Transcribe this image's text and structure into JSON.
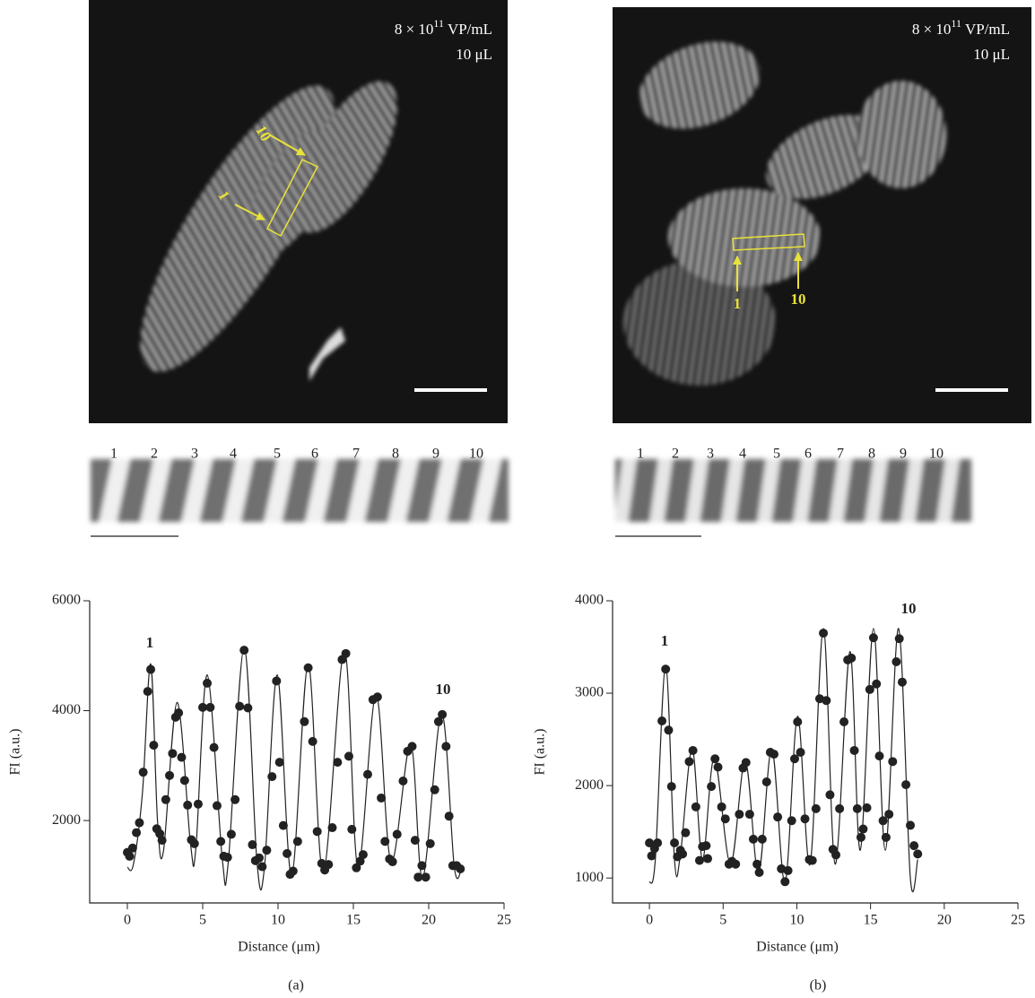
{
  "panels": [
    {
      "label": "(a)",
      "image": {
        "concentration": {
          "mantissa": "8 × 10",
          "exponent": "11",
          "unit": "VP/mL"
        },
        "volume": "10 μL",
        "markers": [
          "1",
          "10"
        ]
      },
      "strip_labels": [
        "1",
        "2",
        "3",
        "4",
        "5",
        "6",
        "7",
        "8",
        "9",
        "10"
      ]
    },
    {
      "label": "(b)",
      "image": {
        "concentration": {
          "mantissa": "8 × 10",
          "exponent": "11",
          "unit": "VP/mL"
        },
        "volume": "10 μL",
        "markers": [
          "1",
          "10"
        ]
      },
      "strip_labels": [
        "1",
        "2",
        "3",
        "4",
        "5",
        "6",
        "7",
        "8",
        "9",
        "10"
      ]
    }
  ],
  "chart_data": [
    {
      "type": "scatter",
      "x_label": "Distance (μm)",
      "y_label": "FI (a.u.)",
      "annotations": [
        "1",
        "10"
      ],
      "xlim": [
        -2.5,
        25
      ],
      "xticks": [
        0,
        5,
        10,
        15,
        20,
        25
      ],
      "ylim": [
        500,
        6000
      ],
      "yticks": [
        2000,
        4000,
        6000
      ],
      "series": [
        {
          "mode": "line",
          "color": "#222",
          "x": [
            0,
            0.4,
            1.0,
            1.55,
            2.0,
            2.4,
            3.3,
            4.2,
            4.55,
            5.3,
            6.3,
            6.7,
            7.75,
            8.6,
            9.1,
            9.95,
            10.9,
            12.0,
            13.0,
            14.4,
            15.3,
            16.5,
            17.5,
            18.8,
            19.6,
            20.85,
            21.7,
            22.2
          ],
          "values": [
            1150,
            1200,
            2500,
            4850,
            2000,
            1450,
            4150,
            1550,
            1500,
            4650,
            1300,
            1250,
            5150,
            1250,
            1150,
            4650,
            1000,
            4850,
            1050,
            5100,
            1150,
            4300,
            1250,
            3400,
            950,
            3950,
            1150,
            1150
          ]
        },
        {
          "mode": "markers",
          "color": "#222",
          "x": [
            0,
            0.15,
            0.35,
            0.6,
            0.8,
            1.05,
            1.35,
            1.55,
            1.75,
            1.95,
            2.15,
            2.3,
            2.55,
            2.8,
            3.0,
            3.2,
            3.4,
            3.6,
            3.8,
            4.0,
            4.25,
            4.45,
            4.7,
            5.0,
            5.3,
            5.5,
            5.75,
            5.95,
            6.2,
            6.4,
            6.65,
            6.9,
            7.15,
            7.45,
            7.75,
            8.0,
            8.3,
            8.5,
            8.75,
            8.95,
            9.25,
            9.6,
            9.9,
            10.1,
            10.35,
            10.6,
            10.8,
            11.0,
            11.3,
            11.75,
            12.0,
            12.3,
            12.6,
            12.9,
            13.1,
            13.35,
            13.6,
            13.95,
            14.25,
            14.5,
            14.7,
            14.9,
            15.2,
            15.45,
            15.65,
            15.95,
            16.3,
            16.6,
            16.85,
            17.1,
            17.4,
            17.6,
            17.9,
            18.3,
            18.6,
            18.9,
            19.1,
            19.3,
            19.55,
            19.8,
            20.1,
            20.4,
            20.65,
            20.9,
            21.15,
            21.35,
            21.6,
            21.85,
            22.1
          ],
          "values": [
            1420,
            1350,
            1500,
            1780,
            1960,
            2880,
            4350,
            4750,
            3370,
            1850,
            1760,
            1640,
            2380,
            2820,
            3220,
            3880,
            3960,
            3150,
            2730,
            2280,
            1650,
            1580,
            2300,
            4060,
            4500,
            4060,
            3330,
            2270,
            1620,
            1350,
            1330,
            1750,
            2380,
            4080,
            5100,
            4050,
            1560,
            1270,
            1320,
            1160,
            1460,
            2800,
            4540,
            3060,
            1910,
            1400,
            1020,
            1080,
            1620,
            3800,
            4780,
            3440,
            1800,
            1220,
            1100,
            1200,
            1870,
            3060,
            4930,
            5040,
            3170,
            1840,
            1140,
            1260,
            1380,
            2840,
            4200,
            4250,
            2410,
            1620,
            1300,
            1250,
            1750,
            2720,
            3260,
            3350,
            1640,
            970,
            1180,
            970,
            1580,
            2560,
            3800,
            3930,
            3350,
            2080,
            1180,
            1180,
            1120
          ]
        }
      ]
    },
    {
      "type": "scatter",
      "x_label": "Distance (μm)",
      "y_label": "FI (a.u.)",
      "annotations": [
        "1",
        "10"
      ],
      "xlim": [
        -2.5,
        25
      ],
      "xticks": [
        0,
        5,
        10,
        15,
        20,
        25
      ],
      "ylim": [
        730,
        4000
      ],
      "yticks": [
        1000,
        2000,
        3000,
        4000
      ],
      "series": [
        {
          "mode": "line",
          "color": "#222",
          "x": [
            0,
            0.4,
            1.1,
            1.7,
            2.1,
            2.9,
            3.6,
            4.4,
            5.5,
            6.5,
            7.4,
            8.3,
            9.2,
            10.05,
            10.9,
            11.8,
            12.6,
            13.6,
            14.3,
            15.2,
            16.0,
            16.9,
            17.7,
            18.2
          ],
          "values": [
            950,
            1200,
            3300,
            1200,
            1250,
            2400,
            1200,
            2300,
            1150,
            2270,
            1050,
            2400,
            950,
            2750,
            1150,
            3700,
            1150,
            3450,
            1300,
            3700,
            1300,
            3700,
            1000,
            1200
          ]
        },
        {
          "mode": "markers",
          "color": "#222",
          "x": [
            0,
            0.15,
            0.35,
            0.55,
            0.85,
            1.1,
            1.3,
            1.5,
            1.7,
            1.9,
            2.1,
            2.25,
            2.45,
            2.7,
            2.95,
            3.15,
            3.4,
            3.6,
            3.85,
            3.95,
            4.2,
            4.45,
            4.65,
            4.9,
            5.15,
            5.4,
            5.6,
            5.85,
            6.1,
            6.35,
            6.55,
            6.8,
            7.05,
            7.3,
            7.45,
            7.65,
            7.95,
            8.2,
            8.45,
            8.7,
            8.95,
            9.2,
            9.4,
            9.65,
            9.85,
            10.05,
            10.25,
            10.55,
            10.85,
            11.05,
            11.3,
            11.55,
            11.8,
            12.0,
            12.25,
            12.45,
            12.65,
            12.9,
            13.2,
            13.45,
            13.7,
            13.9,
            14.1,
            14.35,
            14.5,
            14.75,
            14.95,
            15.2,
            15.4,
            15.6,
            15.85,
            16.05,
            16.25,
            16.5,
            16.75,
            16.95,
            17.15,
            17.4,
            17.7,
            17.95,
            18.2
          ],
          "values": [
            1380,
            1240,
            1320,
            1380,
            2700,
            3260,
            2600,
            1990,
            1380,
            1230,
            1300,
            1260,
            1490,
            2260,
            2380,
            1770,
            1190,
            1340,
            1350,
            1210,
            1990,
            2290,
            2200,
            1770,
            1640,
            1150,
            1180,
            1150,
            1690,
            2190,
            2250,
            1690,
            1420,
            1150,
            1060,
            1420,
            2040,
            2360,
            2340,
            1660,
            1100,
            960,
            1080,
            1620,
            2290,
            2690,
            2360,
            1640,
            1200,
            1190,
            1750,
            2940,
            3650,
            2920,
            1900,
            1310,
            1250,
            1750,
            2690,
            3360,
            3380,
            2380,
            1750,
            1440,
            1530,
            1760,
            3040,
            3600,
            3100,
            2320,
            1620,
            1440,
            1690,
            2260,
            3340,
            3590,
            3120,
            2010,
            1570,
            1350,
            1260
          ]
        }
      ]
    }
  ]
}
